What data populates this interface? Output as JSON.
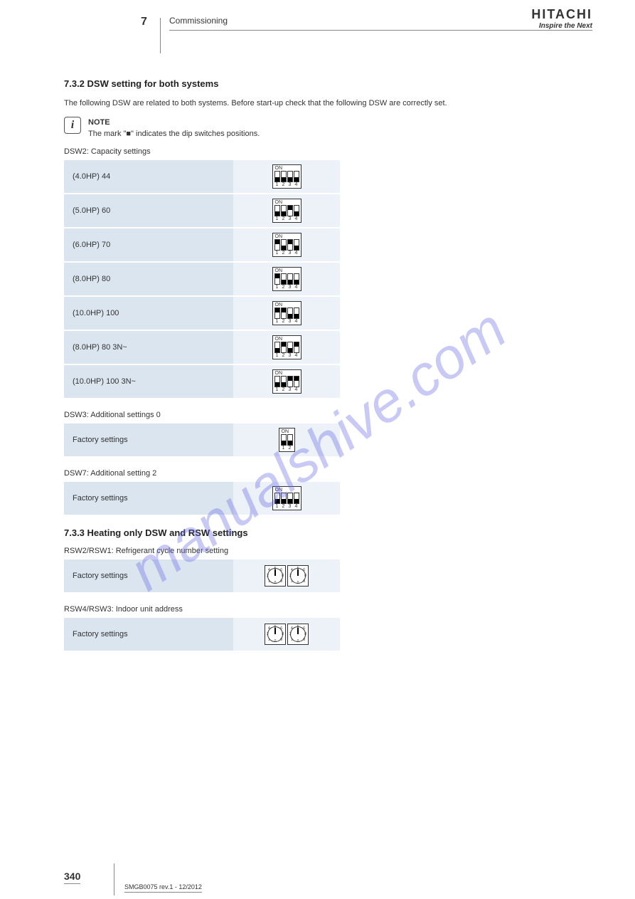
{
  "header": {
    "section_num": "7",
    "section_title": "Commissioning",
    "logo_text": "HITACHI",
    "logo_tagline": "Inspire the Next"
  },
  "heading1": "7.3.2 DSW setting for both systems",
  "intro": "The following DSW are related to both systems. Before start-up check that the following DSW are correctly set.",
  "note": {
    "label": "NOTE",
    "text": "The mark \"■\" indicates the dip switches positions."
  },
  "dsw2": {
    "title": "DSW2: Capacity settings",
    "rows": [
      {
        "label": "(4.0HP) 44",
        "pattern": [
          0,
          0,
          0,
          0
        ]
      },
      {
        "label": "(5.0HP) 60",
        "pattern": [
          0,
          0,
          1,
          0
        ]
      },
      {
        "label": "(6.0HP) 70",
        "pattern": [
          1,
          0,
          1,
          0
        ]
      },
      {
        "label": "(8.0HP) 80",
        "pattern": [
          1,
          0,
          0,
          0
        ]
      },
      {
        "label": "(10.0HP) 100",
        "pattern": [
          1,
          1,
          0,
          0
        ]
      },
      {
        "label": "(8.0HP) 80 3N~",
        "pattern": [
          0,
          1,
          0,
          1
        ]
      },
      {
        "label": "(10.0HP) 100 3N~",
        "pattern": [
          0,
          0,
          1,
          1
        ]
      }
    ]
  },
  "dsw3": {
    "title": "DSW3: Additional settings 0",
    "rows": [
      {
        "label": "Factory settings",
        "pattern": [
          0,
          0
        ]
      }
    ]
  },
  "dsw7": {
    "title": "DSW7: Additional setting 2",
    "rows": [
      {
        "label": "Factory settings",
        "pattern": [
          0,
          0,
          0,
          0
        ]
      }
    ]
  },
  "heading2": "7.3.3 Heating only DSW and RSW settings",
  "rsw2_1": {
    "title": "RSW2/RSW1: Refrigerant cycle number setting",
    "rows": [
      {
        "label": "Factory settings",
        "left_angle": 180,
        "right_angle": 180
      }
    ]
  },
  "rsw4_3": {
    "title": "RSW4/RSW3: Indoor unit address",
    "rows": [
      {
        "label": "Factory settings",
        "left_angle": 180,
        "right_angle": 180
      }
    ]
  },
  "footer": {
    "page": "340",
    "doc": "SMGB0075 rev.1 - 12/2012"
  },
  "watermark": "manualshive.com",
  "colors": {
    "label_bg": "#dae5ef",
    "graphic_bg": "#ecf2f7"
  }
}
